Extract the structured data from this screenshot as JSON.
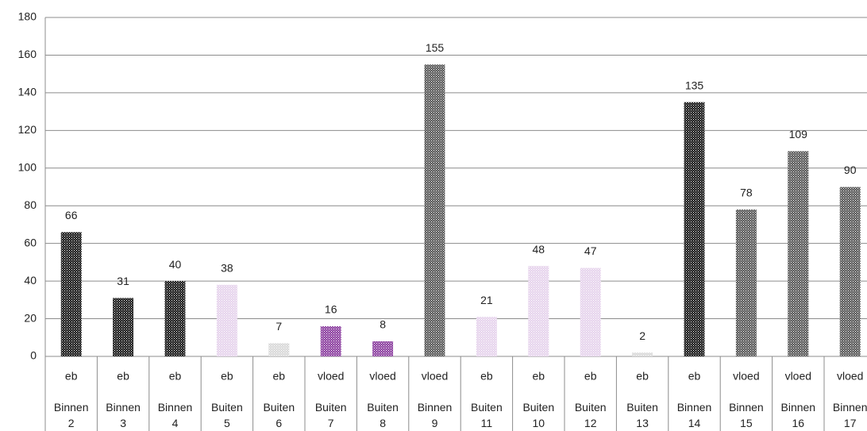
{
  "chart_data": {
    "type": "bar",
    "categories": [
      "eb",
      "eb",
      "eb",
      "eb",
      "eb",
      "vloed",
      "vloed",
      "vloed",
      "eb",
      "eb",
      "eb",
      "eb",
      "eb",
      "vloed",
      "vloed",
      "vloed"
    ],
    "groups": [
      "Binnen 2",
      "Binnen 3",
      "Binnen 4",
      "Buiten 5",
      "Buiten 6",
      "Buiten 7",
      "Buiten 8",
      "Binnen 9",
      "Buiten 11",
      "Buiten 10",
      "Buiten 12",
      "Buiten 13",
      "Binnen 14",
      "Binnen 15",
      "Binnen 16",
      "Binnen 17"
    ],
    "values": [
      66,
      31,
      40,
      38,
      7,
      16,
      8,
      155,
      21,
      48,
      47,
      2,
      135,
      78,
      109,
      90
    ],
    "colors": [
      "#111111",
      "#111111",
      "#111111",
      "#e6d3ec",
      "#d8d8d8",
      "#8a3c9e",
      "#8a3c9e",
      "#555555",
      "#e6d3ec",
      "#e6d3ec",
      "#e6d3ec",
      "#d8d8d8",
      "#111111",
      "#555555",
      "#555555",
      "#555555"
    ],
    "ylim": [
      0,
      180
    ],
    "yticks": [
      0,
      20,
      40,
      60,
      80,
      100,
      120,
      140,
      160,
      180
    ],
    "grid": true
  }
}
